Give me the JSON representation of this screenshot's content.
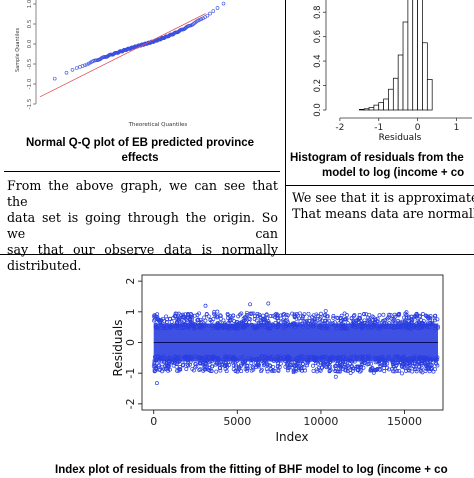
{
  "qq": {
    "caption_line1": "Normal Q-Q plot of EB predicted province",
    "caption_line2": "effects",
    "paragraph": [
      "From the above graph, we can see that the",
      "data set is going through the origin. So we can",
      "say that our observe data is normally",
      "distributed."
    ],
    "chart_data": {
      "type": "scatter",
      "xlabel": "Theoretical Quantiles",
      "ylabel": "Sample Quantiles",
      "ylim": [
        -1.6,
        1.1
      ],
      "xlim": [
        -3.3,
        3.3
      ],
      "yticks": [
        "1.0",
        "0.5",
        "0.0",
        "-0.5",
        "-1.0",
        "-1.5"
      ],
      "ytick_values": [
        1.0,
        0.5,
        0.0,
        -0.5,
        -1.0,
        -1.5
      ],
      "point_color": "#3b4fe0",
      "line_color": "#e05050",
      "reference_line": {
        "slope": 0.4,
        "intercept": 0.0
      }
    }
  },
  "hist": {
    "caption_line1": "Histogram of residuals from the",
    "caption_line2": "model to log (income + co",
    "paragraph": [
      "We see that it is approximately",
      "That means data are normally d"
    ],
    "chart_data": {
      "type": "bar",
      "xlabel": "Residuals",
      "xticks": [
        "-2",
        "-1",
        "0",
        "1"
      ],
      "xtick_values": [
        -2,
        -1,
        0,
        1
      ],
      "yticks": [
        "0.0",
        "0.2",
        "0.4",
        "0.6",
        "0.8"
      ],
      "ytick_values": [
        0.0,
        0.2,
        0.4,
        0.6,
        0.8
      ],
      "ylim": [
        0.0,
        0.9
      ],
      "xlim": [
        -2.1,
        1.4
      ],
      "bin_width": 0.125,
      "bins_start": [
        -1.5,
        -1.375,
        -1.25,
        -1.125,
        -1.0,
        -0.875,
        -0.75,
        -0.625,
        -0.5,
        -0.375,
        -0.25,
        -0.125,
        0.0,
        0.125,
        0.25
      ],
      "values": [
        0.005,
        0.01,
        0.02,
        0.04,
        0.06,
        0.09,
        0.17,
        0.26,
        0.45,
        0.72,
        0.92,
        1.0,
        0.92,
        0.55,
        0.25
      ]
    }
  },
  "index": {
    "caption": "Index plot of residuals from the fitting of BHF model to log (income + co",
    "chart_data": {
      "type": "scatter",
      "xlabel": "Index",
      "ylabel": "Residuals",
      "xticks": [
        "0",
        "5000",
        "10000",
        "15000"
      ],
      "xtick_values": [
        0,
        5000,
        10000,
        15000
      ],
      "yticks": [
        "2",
        "1",
        "0",
        "-1",
        "-2"
      ],
      "ytick_values": [
        2,
        1,
        0,
        -1,
        -2
      ],
      "xlim": [
        -700,
        17300
      ],
      "ylim": [
        -2.2,
        2.2
      ],
      "n_points": 17000,
      "point_color": "#2a3ee0"
    }
  }
}
